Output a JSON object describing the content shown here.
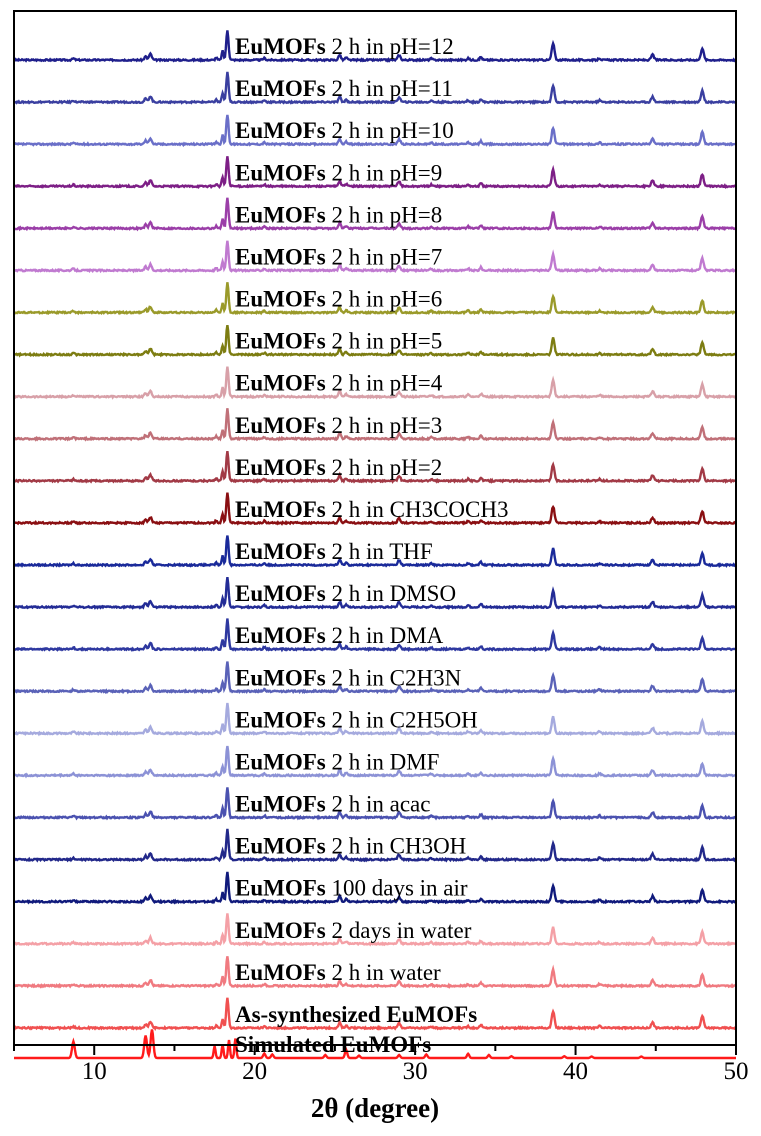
{
  "chart_data": {
    "type": "line",
    "title": "",
    "xlabel": "2θ (degree)",
    "ylabel": "",
    "xlim": [
      5,
      50
    ],
    "x_ticks": [
      10,
      20,
      30,
      40,
      50
    ],
    "y_ticks_shown": false,
    "grid": false,
    "legend": "none",
    "peak_positions_2theta": [
      8.7,
      13.2,
      13.5,
      17.5,
      18.0,
      18.3,
      18.7,
      20.6,
      25.3,
      25.7,
      29.0,
      31.0,
      33.3,
      34.1,
      38.6,
      41.5,
      44.8,
      47.9
    ],
    "series": [
      {
        "bold": "EuMOFs",
        "rest": " 2 h in pH=12",
        "color": "#1f1f8c"
      },
      {
        "bold": "EuMOFs",
        "rest": " 2 h in pH=11",
        "color": "#3a3fa0"
      },
      {
        "bold": "EuMOFs",
        "rest": " 2 h in pH=10",
        "color": "#6a6fc8"
      },
      {
        "bold": "EuMOFs",
        "rest": " 2 h in pH=9",
        "color": "#7d1f86"
      },
      {
        "bold": "EuMOFs",
        "rest": " 2 h in pH=8",
        "color": "#9b3fa8"
      },
      {
        "bold": "EuMOFs",
        "rest": " 2 h in pH=7",
        "color": "#c07ad0"
      },
      {
        "bold": "EuMOFs",
        "rest": " 2 h in pH=6",
        "color": "#9a9a2a"
      },
      {
        "bold": "EuMOFs",
        "rest": " 2 h in pH=5",
        "color": "#7d7d12"
      },
      {
        "bold": "EuMOFs",
        "rest": " 2 h in pH=4",
        "color": "#d8a0a8"
      },
      {
        "bold": "EuMOFs",
        "rest": " 2 h in pH=3",
        "color": "#c07078"
      },
      {
        "bold": "EuMOFs",
        "rest": " 2 h in pH=2",
        "color": "#a23a46"
      },
      {
        "bold": "EuMOFs",
        "rest": " 2 h in CH3COCH3",
        "color": "#8a0f12"
      },
      {
        "bold": "EuMOFs",
        "rest": " 2 h in THF",
        "color": "#1a2a9a"
      },
      {
        "bold": "EuMOFs",
        "rest": " 2 h in DMSO",
        "color": "#232c96"
      },
      {
        "bold": "EuMOFs",
        "rest": " 2 h in DMA",
        "color": "#2e38a0"
      },
      {
        "bold": "EuMOFs",
        "rest": " 2 h in C2H3N",
        "color": "#5a62b8"
      },
      {
        "bold": "EuMOFs",
        "rest": " 2 h in C2H5OH",
        "color": "#a5aade"
      },
      {
        "bold": "EuMOFs",
        "rest": " 2 h in DMF",
        "color": "#8c92d6"
      },
      {
        "bold": "EuMOFs",
        "rest": " 2 h in acac",
        "color": "#4b52b0"
      },
      {
        "bold": "EuMOFs",
        "rest": " 2 h in CH3OH",
        "color": "#22288a"
      },
      {
        "bold": "EuMOFs",
        "rest": " 100 days in air",
        "color": "#101a7c"
      },
      {
        "bold": "EuMOFs",
        "rest": " 2 days in water",
        "color": "#f4a0a6"
      },
      {
        "bold": "EuMOFs",
        "rest": " 2 h in water",
        "color": "#f07a80"
      },
      {
        "bold": "As-synthesized EuMOFs",
        "rest": "",
        "color": "#f05050"
      },
      {
        "bold": "Simulated EuMOFs",
        "rest": "",
        "color": "#ff1a1a"
      }
    ]
  }
}
